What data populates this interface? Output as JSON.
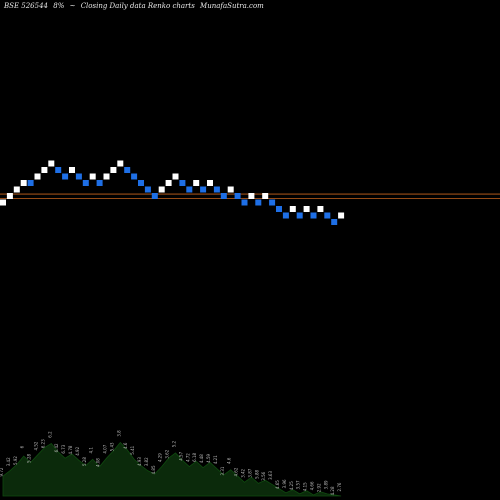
{
  "header": {
    "symbol": "BSE 526544",
    "pct": "8%",
    "arrow": "~",
    "description": "Closing Daily data Renko charts",
    "source": "MunafaSutra.com"
  },
  "colors": {
    "background": "#000000",
    "up_brick": "#ffffff",
    "down_brick": "#1e6fe6",
    "reference_line": "#c8641e",
    "volume_fill": "#0b2a0b",
    "volume_stroke": "#0f4a0f",
    "volume_label": "#bcbcbc"
  },
  "chart_data": [
    {
      "type": "renko",
      "title": "",
      "bricks": [
        {
          "x": 1,
          "y": 1,
          "dir": "up"
        },
        {
          "x": 2,
          "y": 2,
          "dir": "up"
        },
        {
          "x": 3,
          "y": 3,
          "dir": "up"
        },
        {
          "x": 4,
          "y": 4,
          "dir": "up"
        },
        {
          "x": 5,
          "y": 4,
          "dir": "down"
        },
        {
          "x": 6,
          "y": 5,
          "dir": "up"
        },
        {
          "x": 7,
          "y": 6,
          "dir": "up"
        },
        {
          "x": 8,
          "y": 7,
          "dir": "up"
        },
        {
          "x": 9,
          "y": 6,
          "dir": "down"
        },
        {
          "x": 10,
          "y": 5,
          "dir": "down"
        },
        {
          "x": 11,
          "y": 6,
          "dir": "up"
        },
        {
          "x": 12,
          "y": 5,
          "dir": "down"
        },
        {
          "x": 13,
          "y": 4,
          "dir": "down"
        },
        {
          "x": 14,
          "y": 5,
          "dir": "up"
        },
        {
          "x": 15,
          "y": 4,
          "dir": "down"
        },
        {
          "x": 16,
          "y": 5,
          "dir": "up"
        },
        {
          "x": 17,
          "y": 6,
          "dir": "up"
        },
        {
          "x": 18,
          "y": 7,
          "dir": "up"
        },
        {
          "x": 19,
          "y": 6,
          "dir": "down"
        },
        {
          "x": 20,
          "y": 5,
          "dir": "down"
        },
        {
          "x": 21,
          "y": 4,
          "dir": "down"
        },
        {
          "x": 22,
          "y": 3,
          "dir": "down"
        },
        {
          "x": 23,
          "y": 2,
          "dir": "down"
        },
        {
          "x": 24,
          "y": 3,
          "dir": "up"
        },
        {
          "x": 25,
          "y": 4,
          "dir": "up"
        },
        {
          "x": 26,
          "y": 5,
          "dir": "up"
        },
        {
          "x": 27,
          "y": 4,
          "dir": "down"
        },
        {
          "x": 28,
          "y": 3,
          "dir": "down"
        },
        {
          "x": 29,
          "y": 4,
          "dir": "up"
        },
        {
          "x": 30,
          "y": 3,
          "dir": "down"
        },
        {
          "x": 31,
          "y": 4,
          "dir": "up"
        },
        {
          "x": 32,
          "y": 3,
          "dir": "down"
        },
        {
          "x": 33,
          "y": 2,
          "dir": "down"
        },
        {
          "x": 34,
          "y": 3,
          "dir": "up"
        },
        {
          "x": 35,
          "y": 2,
          "dir": "down"
        },
        {
          "x": 36,
          "y": 1,
          "dir": "down"
        },
        {
          "x": 37,
          "y": 2,
          "dir": "up"
        },
        {
          "x": 38,
          "y": 1,
          "dir": "down"
        },
        {
          "x": 39,
          "y": 2,
          "dir": "up"
        },
        {
          "x": 40,
          "y": 1,
          "dir": "down"
        },
        {
          "x": 41,
          "y": 0,
          "dir": "down"
        },
        {
          "x": 42,
          "y": -1,
          "dir": "down"
        },
        {
          "x": 43,
          "y": 0,
          "dir": "up"
        },
        {
          "x": 44,
          "y": -1,
          "dir": "down"
        },
        {
          "x": 45,
          "y": 0,
          "dir": "up"
        },
        {
          "x": 46,
          "y": -1,
          "dir": "down"
        },
        {
          "x": 47,
          "y": 0,
          "dir": "up"
        },
        {
          "x": 48,
          "y": -1,
          "dir": "down"
        },
        {
          "x": 49,
          "y": -2,
          "dir": "down"
        },
        {
          "x": 50,
          "y": -1,
          "dir": "up"
        }
      ],
      "reference_lines": [
        2.3,
        1.6
      ],
      "grid": false,
      "legend": "none"
    },
    {
      "type": "area",
      "title": "",
      "x": [
        1,
        2,
        3,
        4,
        5,
        6,
        7,
        8,
        9,
        10,
        11,
        12,
        13,
        14,
        15,
        16,
        17,
        18,
        19,
        20,
        21,
        22,
        23,
        24,
        25,
        26,
        27,
        28,
        29,
        30,
        31,
        32,
        33,
        34,
        35,
        36,
        37,
        38,
        39,
        40,
        41,
        42,
        43,
        44,
        45,
        46,
        47,
        48,
        49,
        50
      ],
      "values": [
        1.9,
        2.4,
        3.0,
        3.8,
        3.2,
        3.9,
        4.6,
        5.0,
        4.2,
        3.6,
        4.0,
        3.4,
        2.9,
        3.5,
        2.8,
        3.6,
        4.3,
        5.1,
        4.4,
        3.5,
        2.9,
        2.4,
        2.1,
        2.8,
        3.6,
        4.1,
        3.4,
        2.8,
        3.3,
        2.7,
        3.2,
        2.6,
        2.0,
        2.5,
        1.9,
        1.3,
        1.8,
        1.2,
        1.5,
        1.1,
        0.7,
        0.3,
        0.6,
        0.2,
        0.5,
        0.1,
        0.4,
        0.2,
        0.1,
        0.0
      ],
      "labels": [
        "9.72",
        "3.42",
        "5.92",
        "6",
        "5.28",
        "4.52",
        "6.23",
        "6.2",
        "6.42",
        "6.73",
        "4.78",
        "4.92",
        "5.28",
        "4.1",
        "4.08",
        "4.07",
        "5.43",
        "3.8",
        "4.6",
        "5.41",
        "4.93",
        "3.82",
        "4.85",
        "4.29",
        "3.62",
        "5.2",
        "4.57",
        "4.72",
        "6.18",
        "4.48",
        "4.59",
        "4.21",
        "3.31",
        "4.6",
        "4.62",
        "3.42",
        "3.87",
        "5.88",
        "3.56",
        "3.63",
        "4.65",
        "3.96",
        "4.25",
        "3.57",
        "4.15",
        "4.66",
        "2.92",
        "3.89",
        "4.28",
        "2.76"
      ],
      "grid": false,
      "legend": "none"
    }
  ]
}
